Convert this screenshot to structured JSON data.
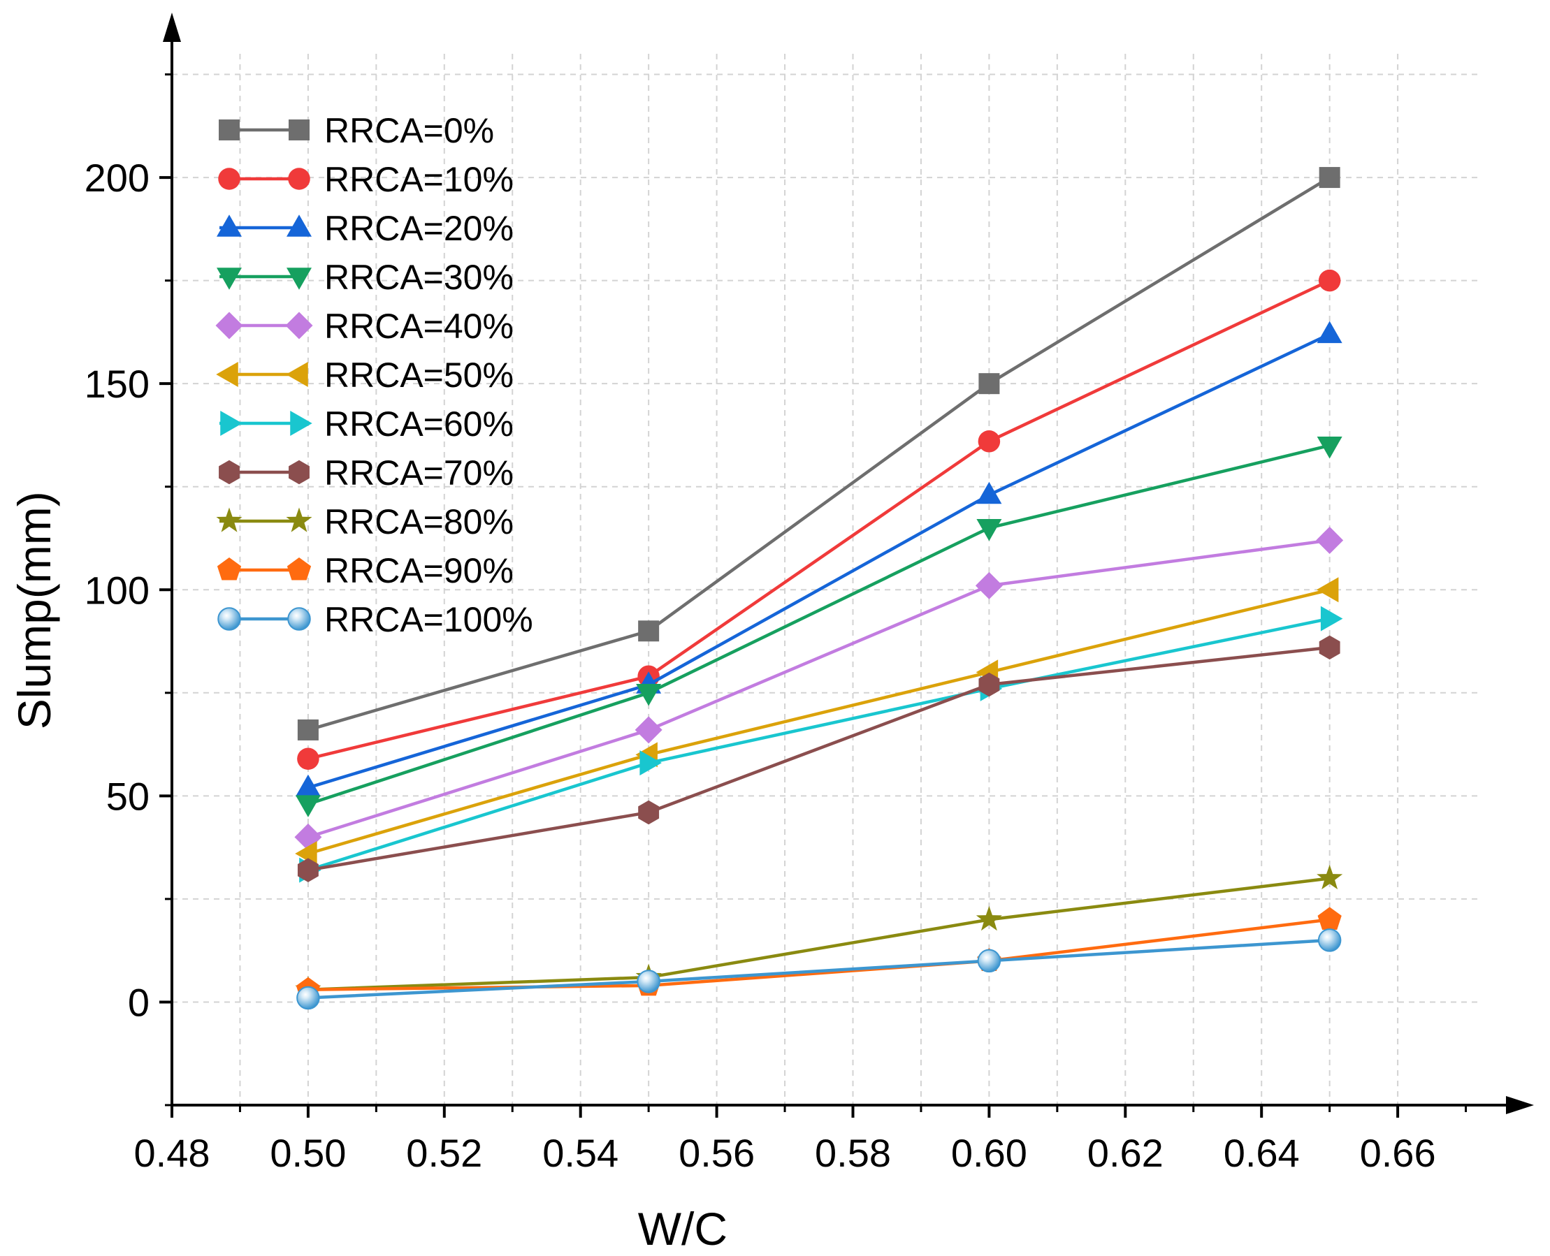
{
  "chart_data": {
    "type": "line",
    "title": "",
    "xlabel": "W/C",
    "ylabel": "Slump(mm)",
    "xlim": [
      0.48,
      0.68
    ],
    "ylim": [
      -25,
      240
    ],
    "x_ticks": [
      {
        "value": 0.48,
        "label": "0.48"
      },
      {
        "value": 0.5,
        "label": "0.50"
      },
      {
        "value": 0.52,
        "label": "0.52"
      },
      {
        "value": 0.54,
        "label": "0.54"
      },
      {
        "value": 0.56,
        "label": "0.56"
      },
      {
        "value": 0.58,
        "label": "0.58"
      },
      {
        "value": 0.6,
        "label": "0.60"
      },
      {
        "value": 0.62,
        "label": "0.62"
      },
      {
        "value": 0.64,
        "label": "0.64"
      },
      {
        "value": 0.66,
        "label": "0.66"
      }
    ],
    "y_ticks": [
      {
        "value": 0,
        "label": "0"
      },
      {
        "value": 50,
        "label": "50"
      },
      {
        "value": 100,
        "label": "100"
      },
      {
        "value": 150,
        "label": "150"
      },
      {
        "value": 200,
        "label": "200"
      }
    ],
    "grid": true,
    "legend_position": "top-left",
    "x": [
      0.5,
      0.55,
      0.6,
      0.65
    ],
    "series": [
      {
        "name": "RRCA=0%",
        "color": "#6e6e6e",
        "marker": "square",
        "values": [
          66,
          90,
          150,
          200
        ]
      },
      {
        "name": "RRCA=10%",
        "color": "#f03a3a",
        "marker": "circle",
        "values": [
          59,
          79,
          136,
          175
        ]
      },
      {
        "name": "RRCA=20%",
        "color": "#1565d8",
        "marker": "triangle-up",
        "values": [
          52,
          77,
          123,
          162
        ]
      },
      {
        "name": "RRCA=30%",
        "color": "#16a05f",
        "marker": "triangle-down",
        "values": [
          48,
          75,
          115,
          135
        ]
      },
      {
        "name": "RRCA=40%",
        "color": "#c27ce0",
        "marker": "diamond",
        "values": [
          40,
          66,
          101,
          112
        ]
      },
      {
        "name": "RRCA=50%",
        "color": "#dba20a",
        "marker": "triangle-left",
        "values": [
          36,
          60,
          80,
          100
        ]
      },
      {
        "name": "RRCA=60%",
        "color": "#19c6cf",
        "marker": "triangle-right",
        "values": [
          32,
          58,
          76,
          93
        ]
      },
      {
        "name": "RRCA=70%",
        "color": "#8b4e4e",
        "marker": "hexagon",
        "values": [
          32,
          46,
          77,
          86
        ]
      },
      {
        "name": "RRCA=80%",
        "color": "#8a8a10",
        "marker": "star",
        "values": [
          3,
          6,
          20,
          30
        ]
      },
      {
        "name": "RRCA=90%",
        "color": "#ff6b10",
        "marker": "pentagon",
        "values": [
          3,
          4,
          10,
          20
        ]
      },
      {
        "name": "RRCA=100%",
        "color": "#3d96d0",
        "marker": "sphere",
        "values": [
          1,
          5,
          10,
          15
        ]
      }
    ]
  }
}
